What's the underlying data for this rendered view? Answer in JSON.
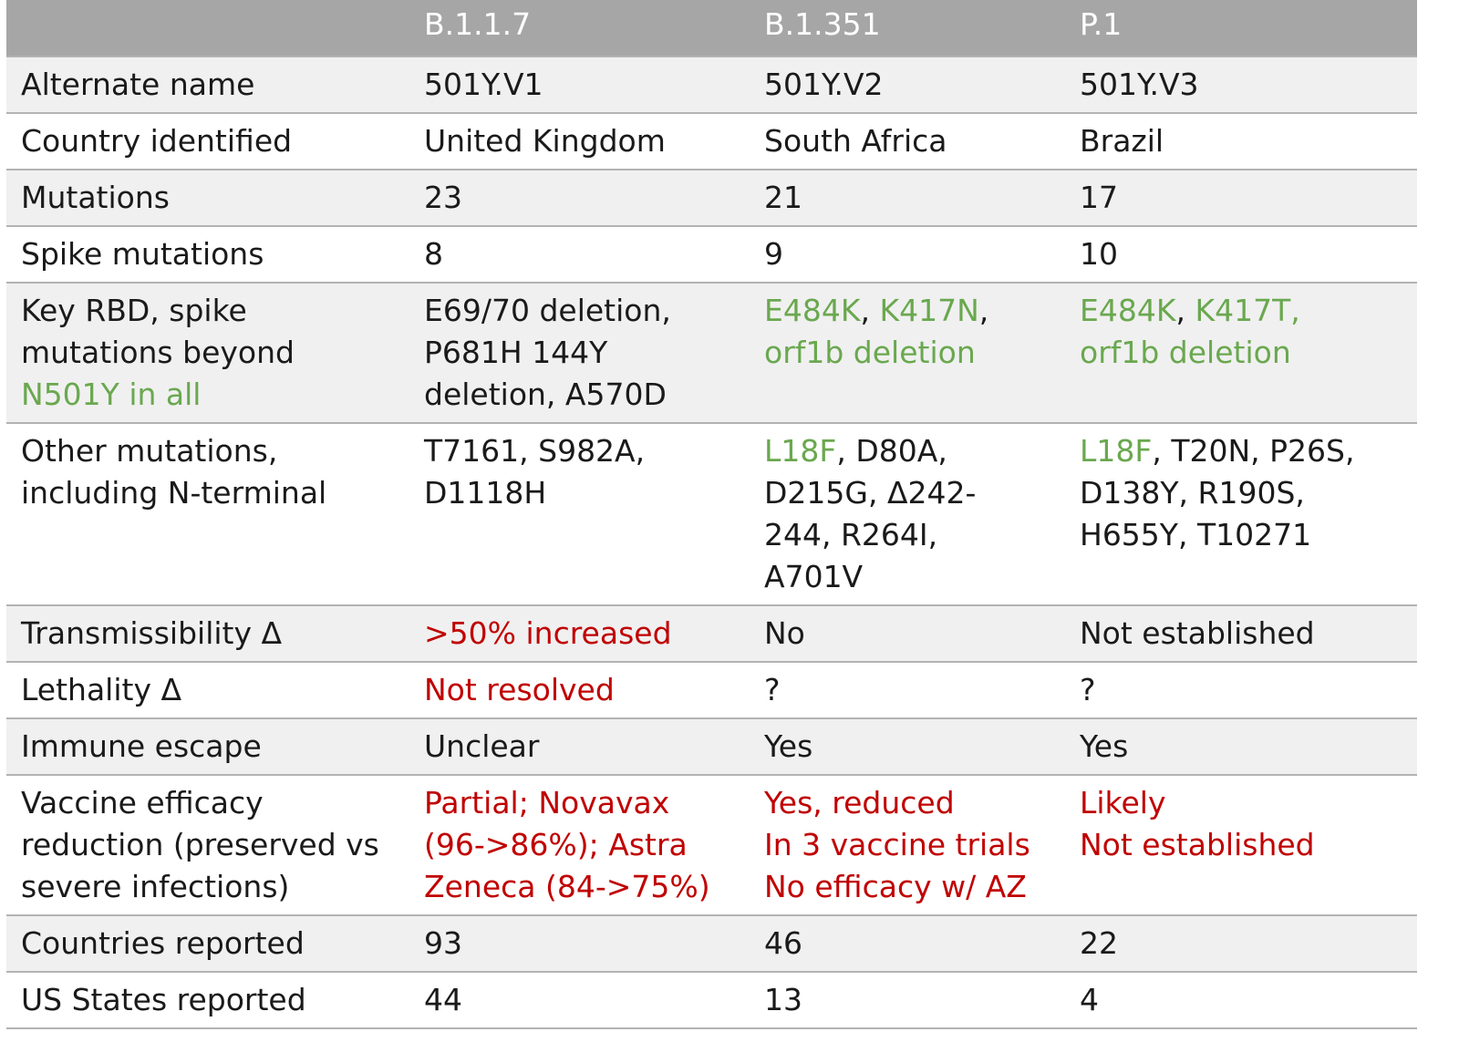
{
  "colors": {
    "header_bg": "#a6a6a6",
    "header_text": "#ffffff",
    "shaded_row": "#f0f0f0",
    "text": "#1a1a1a",
    "green": "#6aa84f",
    "red": "#c00000"
  },
  "header": [
    "",
    "B.1.1.7",
    "B.1.351",
    "P.1"
  ],
  "rows": [
    {
      "label": "Alternate name",
      "cells": [
        [
          {
            "t": "501Y.V1"
          }
        ],
        [
          {
            "t": "501Y.V2"
          }
        ],
        [
          {
            "t": "501Y.V3"
          }
        ]
      ]
    },
    {
      "label": "Country identified",
      "cells": [
        [
          {
            "t": "United Kingdom"
          }
        ],
        [
          {
            "t": "South Africa"
          }
        ],
        [
          {
            "t": "Brazil"
          }
        ]
      ]
    },
    {
      "label": "Mutations",
      "cells": [
        [
          {
            "t": "23"
          }
        ],
        [
          {
            "t": "21"
          }
        ],
        [
          {
            "t": "17"
          }
        ]
      ]
    },
    {
      "label": "Spike mutations",
      "cells": [
        [
          {
            "t": "8"
          }
        ],
        [
          {
            "t": "9"
          }
        ],
        [
          {
            "t": "10"
          }
        ]
      ]
    },
    {
      "label": [
        {
          "t": "Key RBD, spike\nmutations beyond\n"
        },
        {
          "t": "N501Y in all",
          "c": "green"
        }
      ],
      "cells": [
        [
          {
            "t": "E69/70 deletion,\nP681H 144Y\ndeletion, A570D"
          }
        ],
        [
          {
            "t": "E484K",
            "c": "green"
          },
          {
            "t": ", "
          },
          {
            "t": "K417N",
            "c": "green"
          },
          {
            "t": ",\n"
          },
          {
            "t": "orf1b deletion",
            "c": "green"
          }
        ],
        [
          {
            "t": "E484K",
            "c": "green"
          },
          {
            "t": ", "
          },
          {
            "t": "K417T,\norf1b deletion",
            "c": "green"
          }
        ]
      ]
    },
    {
      "label": "Other mutations,\nincluding N-terminal",
      "cells": [
        [
          {
            "t": "T7161, S982A,\nD1118H"
          }
        ],
        [
          {
            "t": "L18F",
            "c": "green"
          },
          {
            "t": ", D80A,\nD215G, Δ242-\n244, R264I,\nA701V"
          }
        ],
        [
          {
            "t": "L18F",
            "c": "green"
          },
          {
            "t": ", T20N, P26S,\nD138Y, R190S,\nH655Y, T10271"
          }
        ]
      ]
    },
    {
      "label": "Transmissibility Δ",
      "cells": [
        [
          {
            "t": ">50% increased",
            "c": "red"
          }
        ],
        [
          {
            "t": "No"
          }
        ],
        [
          {
            "t": "Not established"
          }
        ]
      ]
    },
    {
      "label": "Lethality Δ",
      "cells": [
        [
          {
            "t": "Not resolved",
            "c": "red"
          }
        ],
        [
          {
            "t": "?"
          }
        ],
        [
          {
            "t": "?"
          }
        ]
      ]
    },
    {
      "label": "Immune escape",
      "cells": [
        [
          {
            "t": "Unclear"
          }
        ],
        [
          {
            "t": "Yes"
          }
        ],
        [
          {
            "t": "Yes"
          }
        ]
      ]
    },
    {
      "label": "Vaccine efficacy\nreduction (preserved vs\nsevere infections)",
      "cells": [
        [
          {
            "t": "Partial; Novavax\n(96->86%); Astra\nZeneca (84->75%)",
            "c": "red"
          }
        ],
        [
          {
            "t": "Yes, reduced\nIn 3 vaccine trials\nNo efficacy w/ AZ",
            "c": "red"
          }
        ],
        [
          {
            "t": "Likely\nNot established",
            "c": "red"
          }
        ]
      ]
    },
    {
      "label": "Countries reported",
      "cells": [
        [
          {
            "t": "93"
          }
        ],
        [
          {
            "t": "46"
          }
        ],
        [
          {
            "t": "22"
          }
        ]
      ]
    },
    {
      "label": "US States reported",
      "cells": [
        [
          {
            "t": "44"
          }
        ],
        [
          {
            "t": "13"
          }
        ],
        [
          {
            "t": "4"
          }
        ]
      ]
    }
  ]
}
